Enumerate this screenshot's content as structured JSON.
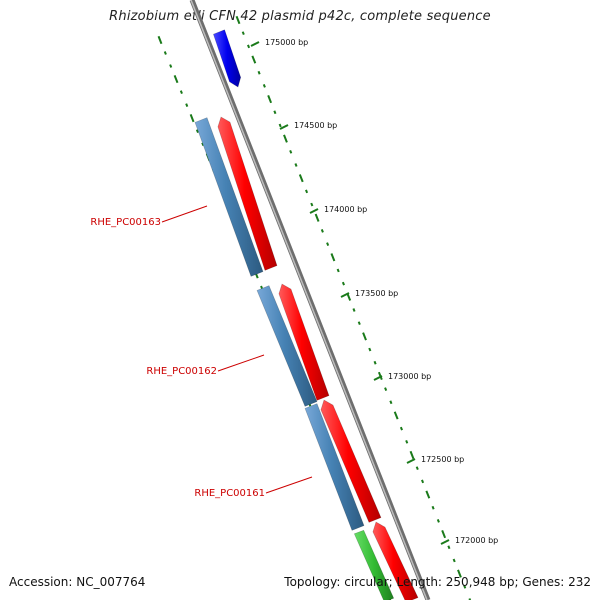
{
  "title": "Rhizobium etli CFN 42 plasmid p42c, complete sequence",
  "footer": {
    "accession": "Accession: NC_007764",
    "summary": "Topology: circular; Length: 250,948 bp; Genes: 232"
  },
  "ruler": {
    "tick_labels": [
      "175000 bp",
      "174500 bp",
      "174000 bp",
      "173500 bp",
      "173000 bp",
      "172500 bp",
      "172000 bp"
    ]
  },
  "gene_labels": [
    "RHE_PC00163",
    "RHE_PC00162",
    "RHE_PC00161"
  ],
  "colors": {
    "backbone": "#8a8a8a",
    "forward_cds": "#ff0000",
    "reverse_cds": "#4682b4",
    "feature_blue": "#0000ee",
    "feature_green": "#33bb33",
    "gc_marks": "#1a7a1a",
    "label_red": "#cc0000"
  },
  "icons": [
    "blue-feature-arrow",
    "red-cds-arrow",
    "steelblue-cds-arrow",
    "green-feature-arrow"
  ]
}
